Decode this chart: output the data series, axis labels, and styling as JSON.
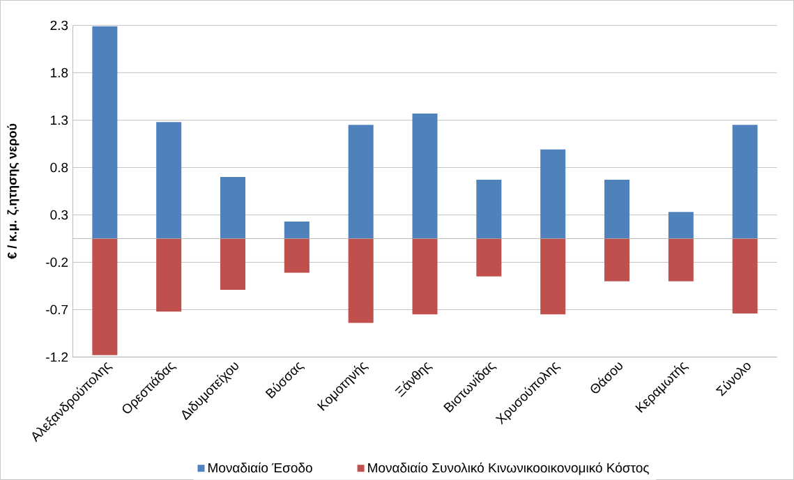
{
  "chart_data": {
    "type": "bar",
    "ylabel": "€ / κ.μ. ζ.ητησης νερού",
    "categories": [
      "Αλεξανδρούπολης",
      "Ορεστιάδας",
      "Διδυμοτείχου",
      "Βύσσας",
      "Κομοτηνής",
      "Ξάνθης",
      "Βιστωνίδας",
      "Χρυσούπολης",
      "Θάσου",
      "Κεραμωτής",
      "Σύνολο"
    ],
    "series": [
      {
        "name": "Μοναδιαίο Έσοδο",
        "color": "#4f81bd",
        "values": [
          2.24,
          1.23,
          0.65,
          0.18,
          1.2,
          1.32,
          0.62,
          0.94,
          0.62,
          0.28,
          1.2
        ]
      },
      {
        "name": "Μοναδιαίο Συνολικό Κινωνικοοικονομικό Κόστος",
        "color": "#c0504d",
        "values": [
          -1.23,
          -0.77,
          -0.54,
          -0.36,
          -0.89,
          -0.8,
          -0.4,
          -0.8,
          -0.45,
          -0.45,
          -0.79
        ]
      }
    ],
    "ylim": [
      -1.25,
      2.25
    ],
    "yticks": [
      {
        "value": -1.25,
        "label": "-1.2"
      },
      {
        "value": -0.75,
        "label": "-0.7"
      },
      {
        "value": -0.25,
        "label": "-0.2"
      },
      {
        "value": 0.25,
        "label": "0.3"
      },
      {
        "value": 0.75,
        "label": "0.8"
      },
      {
        "value": 1.25,
        "label": "1.3"
      },
      {
        "value": 1.75,
        "label": "1.8"
      },
      {
        "value": 2.25,
        "label": "2.3"
      }
    ],
    "grid": "y",
    "legend": "bottom",
    "stacked": true
  }
}
